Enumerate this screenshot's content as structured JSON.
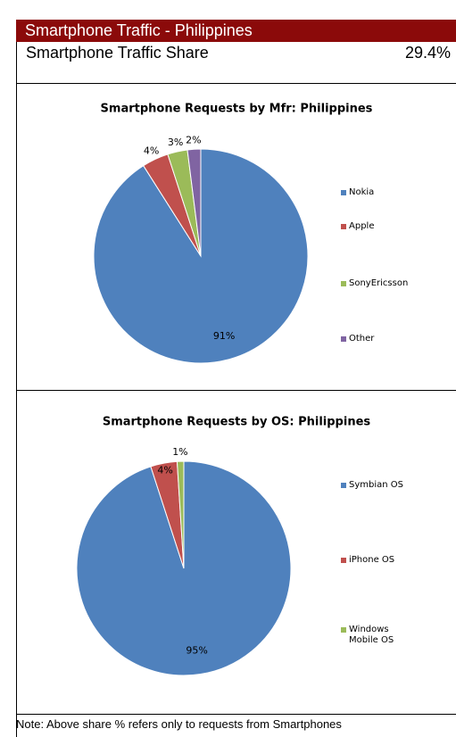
{
  "header": {
    "title": "Smartphone Traffic - Philippines",
    "share_label": "Smartphone Traffic Share",
    "share_value": "29.4%"
  },
  "chart_data": [
    {
      "type": "pie",
      "title": "Smartphone Requests by Mfr: Philippines",
      "categories": [
        "Nokia",
        "Apple",
        "SonyEricsson",
        "Other"
      ],
      "values": [
        91,
        4,
        3,
        2
      ],
      "value_labels": [
        "91%",
        "4%",
        "3%",
        "2%"
      ],
      "colors": [
        "#4f81bd",
        "#c0504d",
        "#9bbb59",
        "#8064a2"
      ],
      "legend": "right"
    },
    {
      "type": "pie",
      "title": "Smartphone Requests by OS: Philippines",
      "categories": [
        "Symbian OS",
        "iPhone OS",
        "Windows Mobile OS"
      ],
      "values": [
        95,
        4,
        1
      ],
      "value_labels": [
        "95%",
        "4%",
        "1%"
      ],
      "colors": [
        "#4f81bd",
        "#c0504d",
        "#9bbb59"
      ],
      "legend": "right"
    }
  ],
  "note": "Note: Above share % refers only to requests from Smartphones"
}
